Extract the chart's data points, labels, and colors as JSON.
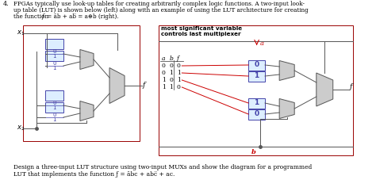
{
  "bg_color": "#ffffff",
  "text_color": "#000000",
  "mux_color": "#4444aa",
  "mux_fill": "#ddeeff",
  "trap_edge": "#555555",
  "trap_fill": "#cccccc",
  "red_color": "#cc0000",
  "box_color": "#990000",
  "wire_color": "#555555",
  "header1": "FPGAs typically use look-up tables for creating arbitrarily complex logic functions. A two-input look-",
  "header2": "up table (LUT) is shown below (left) along with an example of using the LUT architecture for creating",
  "header3": "the function ",
  "header3b": "f",
  "header3c": " = āb + ab̅ = a⊕b (right).",
  "annotation1": "most significant variable",
  "annotation2": "controls last multiplexer",
  "truth_headers": [
    "a",
    "b",
    "f"
  ],
  "truth_table": [
    [
      "0",
      "0",
      "0"
    ],
    [
      "0",
      "1",
      "1"
    ],
    [
      "1",
      "0",
      "1"
    ],
    [
      "1",
      "1",
      "0"
    ]
  ],
  "stored_top": [
    "0",
    "1"
  ],
  "stored_bot": [
    "1",
    "0"
  ],
  "caption1": "Design a three-input LUT structure using two-input MUXs and show the diagram for a programmed",
  "caption2": "LUT that implements the function ƒ = ābc + abc̅ + ac."
}
